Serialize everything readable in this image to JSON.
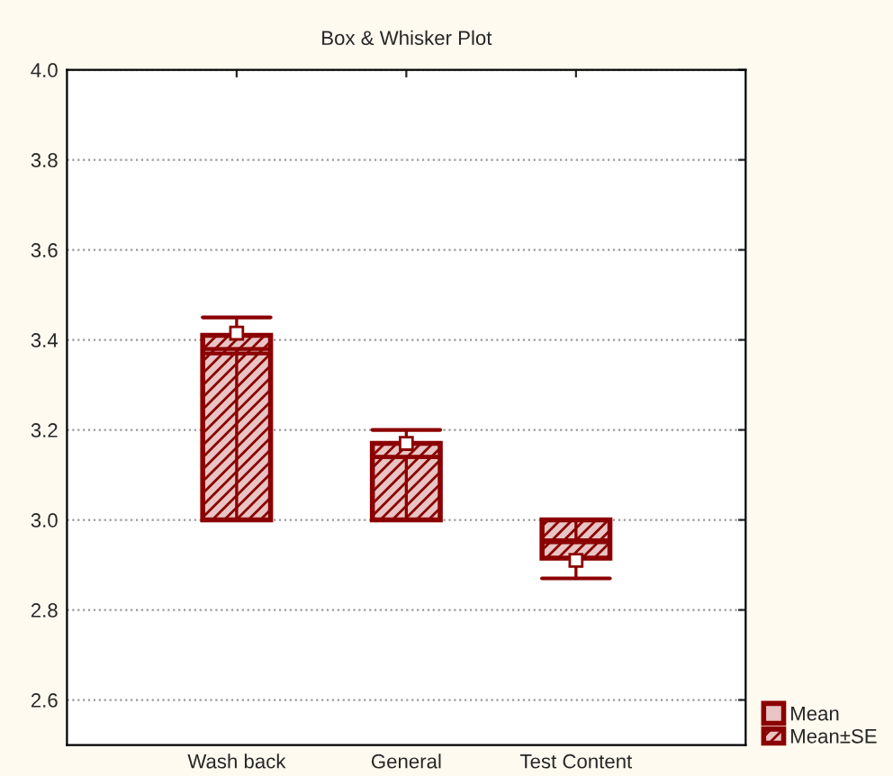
{
  "chart_data": {
    "type": "box",
    "title": "Box & Whisker Plot",
    "categories": [
      "Wash back",
      "General",
      "Test Content"
    ],
    "ylim": [
      2.5,
      4.0
    ],
    "yticks": [
      {
        "value": 2.6,
        "label": "2.6"
      },
      {
        "value": 2.8,
        "label": "2.8"
      },
      {
        "value": 3.0,
        "label": "3.0"
      },
      {
        "value": 3.2,
        "label": "3.2"
      },
      {
        "value": 3.4,
        "label": "3.4"
      },
      {
        "value": 3.6,
        "label": "3.6"
      },
      {
        "value": 3.8,
        "label": "3.8"
      },
      {
        "value": 4.0,
        "label": "4.0"
      }
    ],
    "grid": "y",
    "legend": "bottom right",
    "marker": "square",
    "series": [
      {
        "type": "scatter",
        "name": "Mean",
        "color": "#8b0000",
        "values": [
          3.415,
          3.17,
          2.91
        ]
      },
      {
        "name": "Mean±SE",
        "color": "#8b0000",
        "boxes": [
          {
            "low": 3.38,
            "q1": 3.0,
            "median": 3.37,
            "q3": 3.41,
            "high": 3.45
          },
          {
            "low": 3.14,
            "q1": 3.0,
            "median": 3.14,
            "q3": 3.17,
            "high": 3.2
          },
          {
            "low": 2.87,
            "q1": 2.915,
            "median": 2.955,
            "q3": 3.0,
            "high": 2.95
          }
        ]
      }
    ]
  }
}
